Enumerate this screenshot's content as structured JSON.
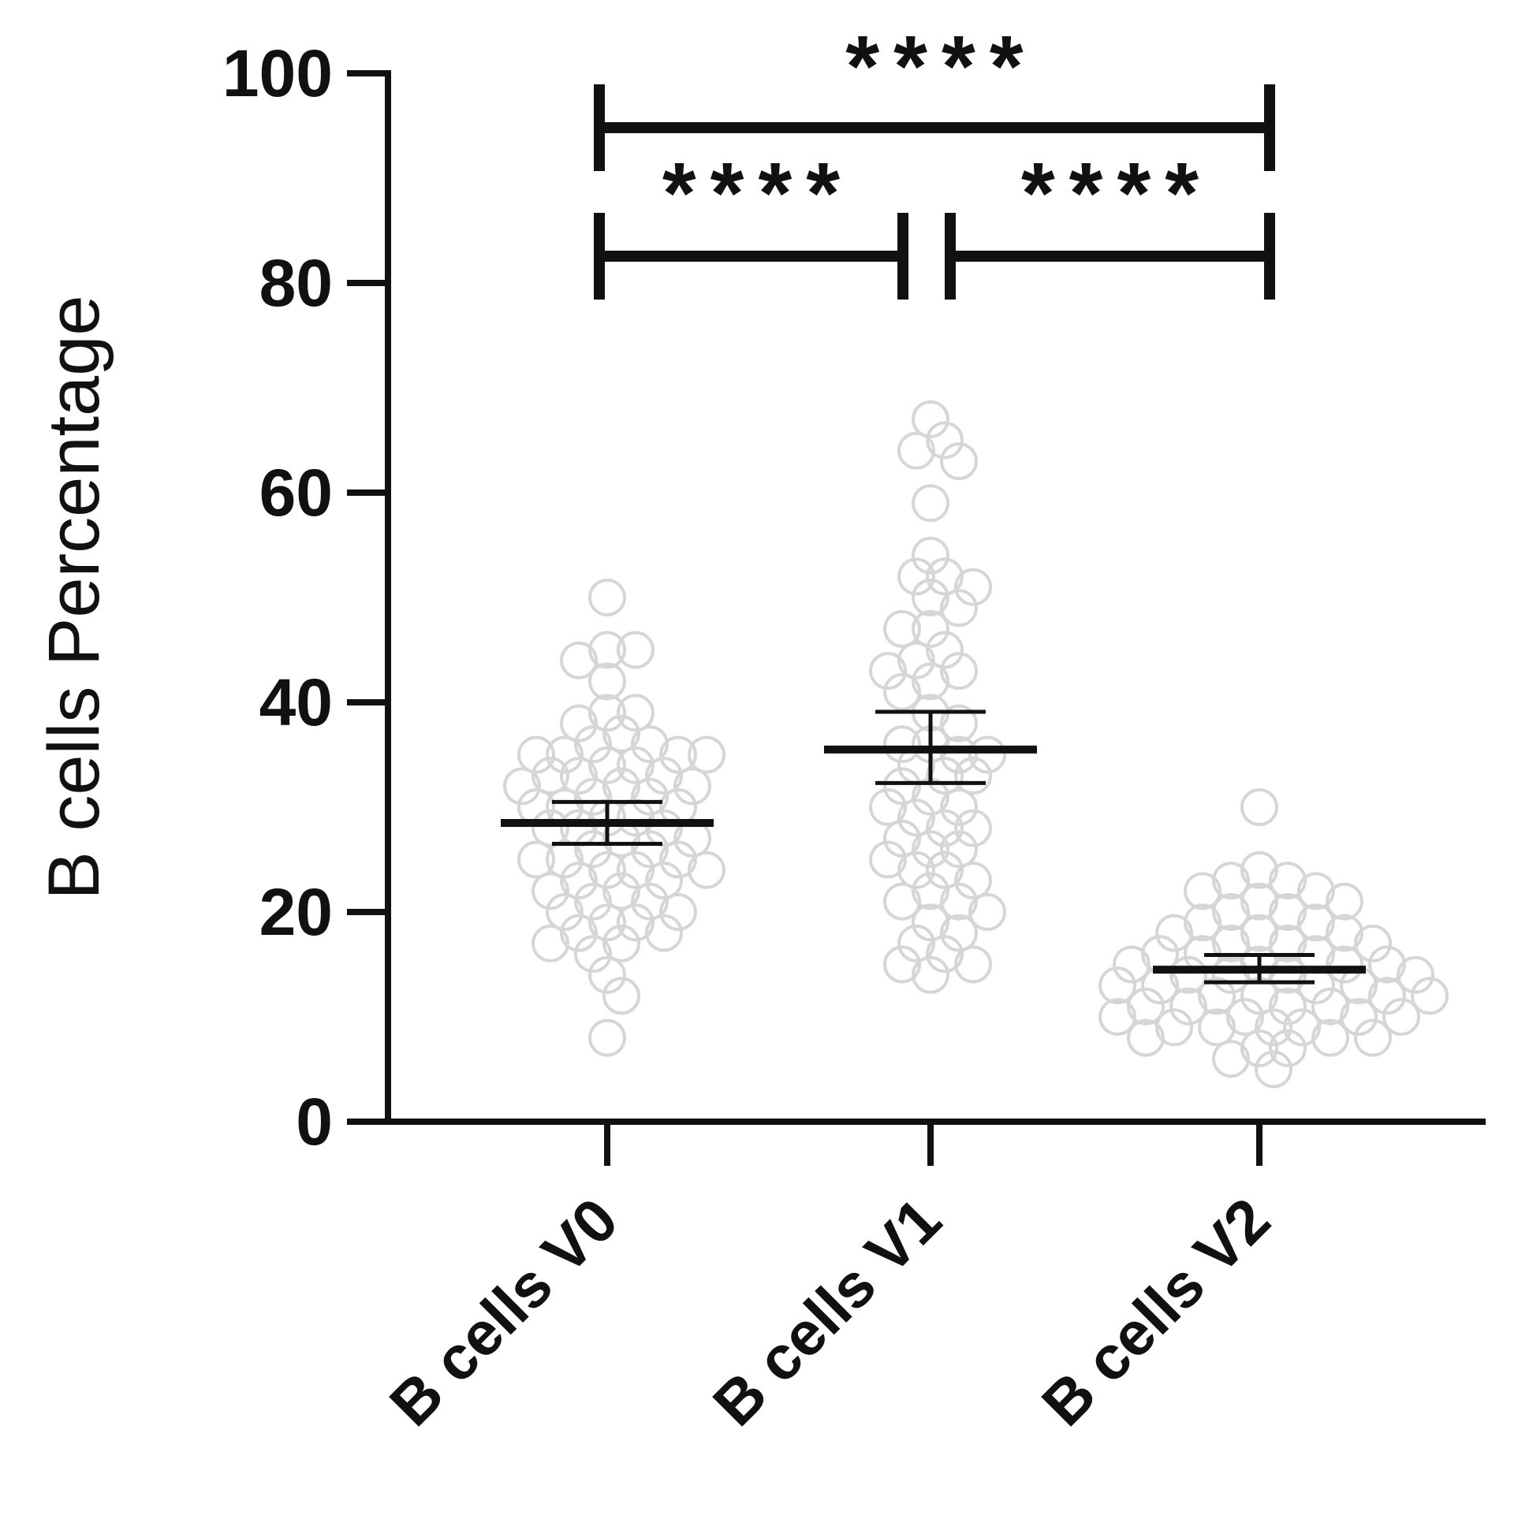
{
  "chart_data": {
    "type": "scatter",
    "ylabel": "B cells Percentage",
    "ylim": [
      0,
      100
    ],
    "yticks": [
      0,
      20,
      40,
      60,
      80,
      100
    ],
    "categories": [
      "B cells V0",
      "B cells V1",
      "B cells V2"
    ],
    "grid": false,
    "colors": {
      "points": "#d6d6d6",
      "axis": "#111111"
    },
    "series": [
      {
        "category": "B cells V0",
        "mean": 28.5,
        "sem": [
          26.5,
          30.5
        ],
        "values": [
          50,
          45,
          45,
          44,
          42,
          39,
          39,
          38,
          37,
          36,
          36,
          35,
          35,
          35,
          35,
          34,
          34,
          33,
          33,
          33,
          32,
          32,
          32,
          31,
          31,
          30,
          30,
          30,
          29,
          29,
          28,
          28,
          28,
          27,
          27,
          26,
          26,
          25,
          25,
          25,
          24,
          24,
          24,
          23,
          23,
          22,
          22,
          21,
          21,
          20,
          20,
          19,
          19,
          18,
          18,
          17,
          17,
          16,
          14,
          12,
          8
        ]
      },
      {
        "category": "B cells V1",
        "mean": 35.5,
        "sem": [
          32.3,
          39.1
        ],
        "values": [
          67,
          65,
          64,
          63,
          59,
          54,
          52,
          52,
          51,
          50,
          49,
          47,
          47,
          45,
          44,
          43,
          43,
          42,
          41,
          39,
          38,
          36,
          36,
          35,
          35,
          34,
          33,
          33,
          32,
          31,
          30,
          30,
          29,
          28,
          28,
          27,
          26,
          26,
          25,
          24,
          24,
          23,
          22,
          21,
          21,
          20,
          19,
          18,
          17,
          16,
          15,
          15,
          14
        ]
      },
      {
        "category": "B cells V2",
        "mean": 14.5,
        "sem": [
          13.3,
          15.9
        ],
        "values": [
          30,
          24,
          23,
          23,
          22,
          22,
          21,
          21,
          20,
          20,
          19,
          19,
          18,
          18,
          18,
          17,
          17,
          17,
          16,
          16,
          16,
          15,
          15,
          15,
          15,
          14,
          14,
          14,
          14,
          13,
          13,
          13,
          13,
          12,
          12,
          12,
          12,
          11,
          11,
          11,
          11,
          10,
          10,
          10,
          10,
          9,
          9,
          9,
          9,
          8,
          8,
          8,
          7,
          7,
          6,
          5
        ]
      }
    ],
    "significance": [
      {
        "from": 0,
        "to": 2,
        "label": "****"
      },
      {
        "from": 0,
        "to": 1,
        "label": "****"
      },
      {
        "from": 1,
        "to": 2,
        "label": "****"
      }
    ]
  }
}
